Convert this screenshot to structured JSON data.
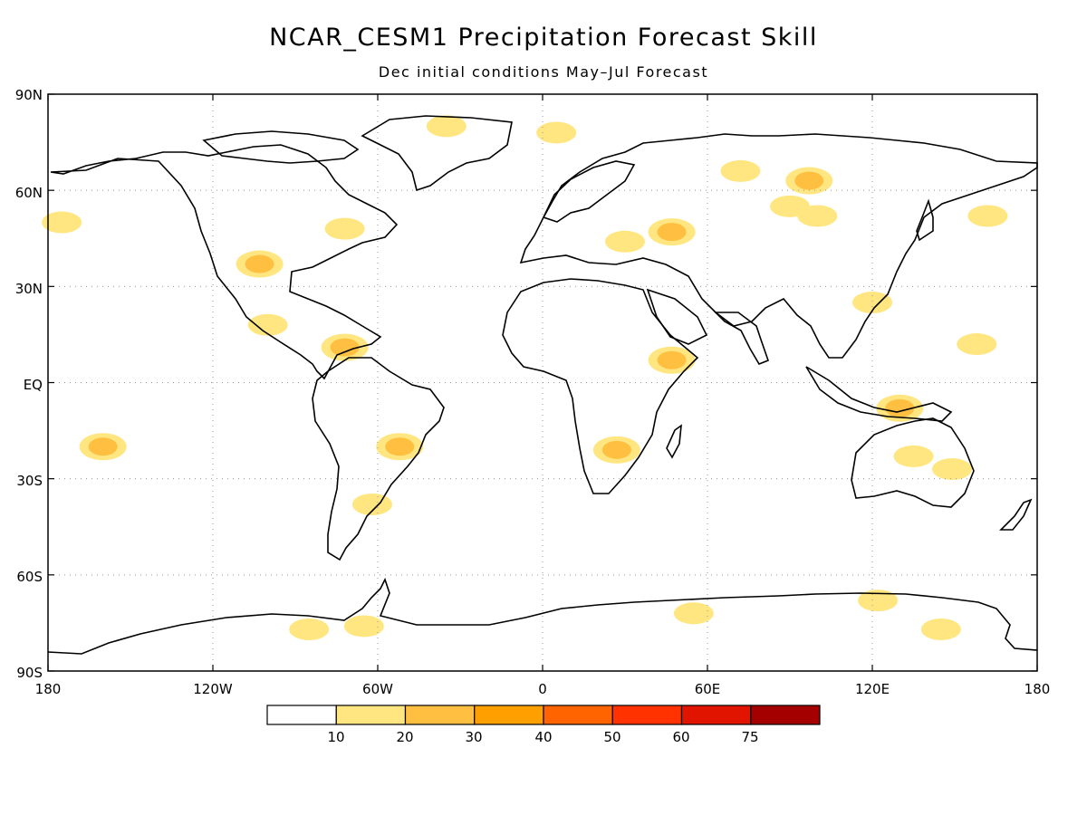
{
  "title": "NCAR_CESM1 Precipitation Forecast Skill",
  "subtitle": "Dec initial conditions   May–Jul Forecast",
  "lat_labels": [
    "90N",
    "60N",
    "30N",
    "EQ",
    "30S",
    "60S",
    "90S"
  ],
  "lon_labels": [
    "180",
    "120W",
    "60W",
    "0",
    "60E",
    "120E",
    "180"
  ],
  "colorbar": {
    "colors": [
      "#ffffff",
      "#ffe680",
      "#ffbf40",
      "#ffa000",
      "#ff6400",
      "#ff3200",
      "#e11400",
      "#a50000"
    ],
    "labels": [
      "10",
      "20",
      "30",
      "40",
      "50",
      "60",
      "75"
    ]
  },
  "skill_regions": [
    {
      "lat": 80,
      "lon": -35,
      "level": 1
    },
    {
      "lat": 78,
      "lon": 5,
      "level": 1
    },
    {
      "lat": 63,
      "lon": 97,
      "level": 2
    },
    {
      "lat": 55,
      "lon": 90,
      "level": 1
    },
    {
      "lat": 52,
      "lon": 100,
      "level": 1
    },
    {
      "lat": 66,
      "lon": 72,
      "level": 1
    },
    {
      "lat": 47,
      "lon": 47,
      "level": 2
    },
    {
      "lat": 44,
      "lon": 30,
      "level": 1
    },
    {
      "lat": 52,
      "lon": 162,
      "level": 1
    },
    {
      "lat": 37,
      "lon": -103,
      "level": 2
    },
    {
      "lat": 48,
      "lon": -72,
      "level": 1
    },
    {
      "lat": 18,
      "lon": -100,
      "level": 1
    },
    {
      "lat": 11,
      "lon": -72,
      "level": 2
    },
    {
      "lat": -20,
      "lon": -52,
      "level": 2
    },
    {
      "lat": -38,
      "lon": -62,
      "level": 1
    },
    {
      "lat": -21,
      "lon": 27,
      "level": 2
    },
    {
      "lat": 7,
      "lon": 47,
      "level": 2
    },
    {
      "lat": -8,
      "lon": 130,
      "level": 2
    },
    {
      "lat": -23,
      "lon": 135,
      "level": 1
    },
    {
      "lat": -27,
      "lon": 149,
      "level": 1
    },
    {
      "lat": -20,
      "lon": -160,
      "level": 2
    },
    {
      "lat": -77,
      "lon": -85,
      "level": 1
    },
    {
      "lat": -76,
      "lon": -65,
      "level": 1
    },
    {
      "lat": -72,
      "lon": 55,
      "level": 1
    },
    {
      "lat": -77,
      "lon": 145,
      "level": 1
    },
    {
      "lat": -68,
      "lon": 122,
      "level": 1
    },
    {
      "lat": 12,
      "lon": 158,
      "level": 1
    },
    {
      "lat": 25,
      "lon": 120,
      "level": 1
    },
    {
      "lat": 50,
      "lon": -175,
      "level": 1
    }
  ]
}
